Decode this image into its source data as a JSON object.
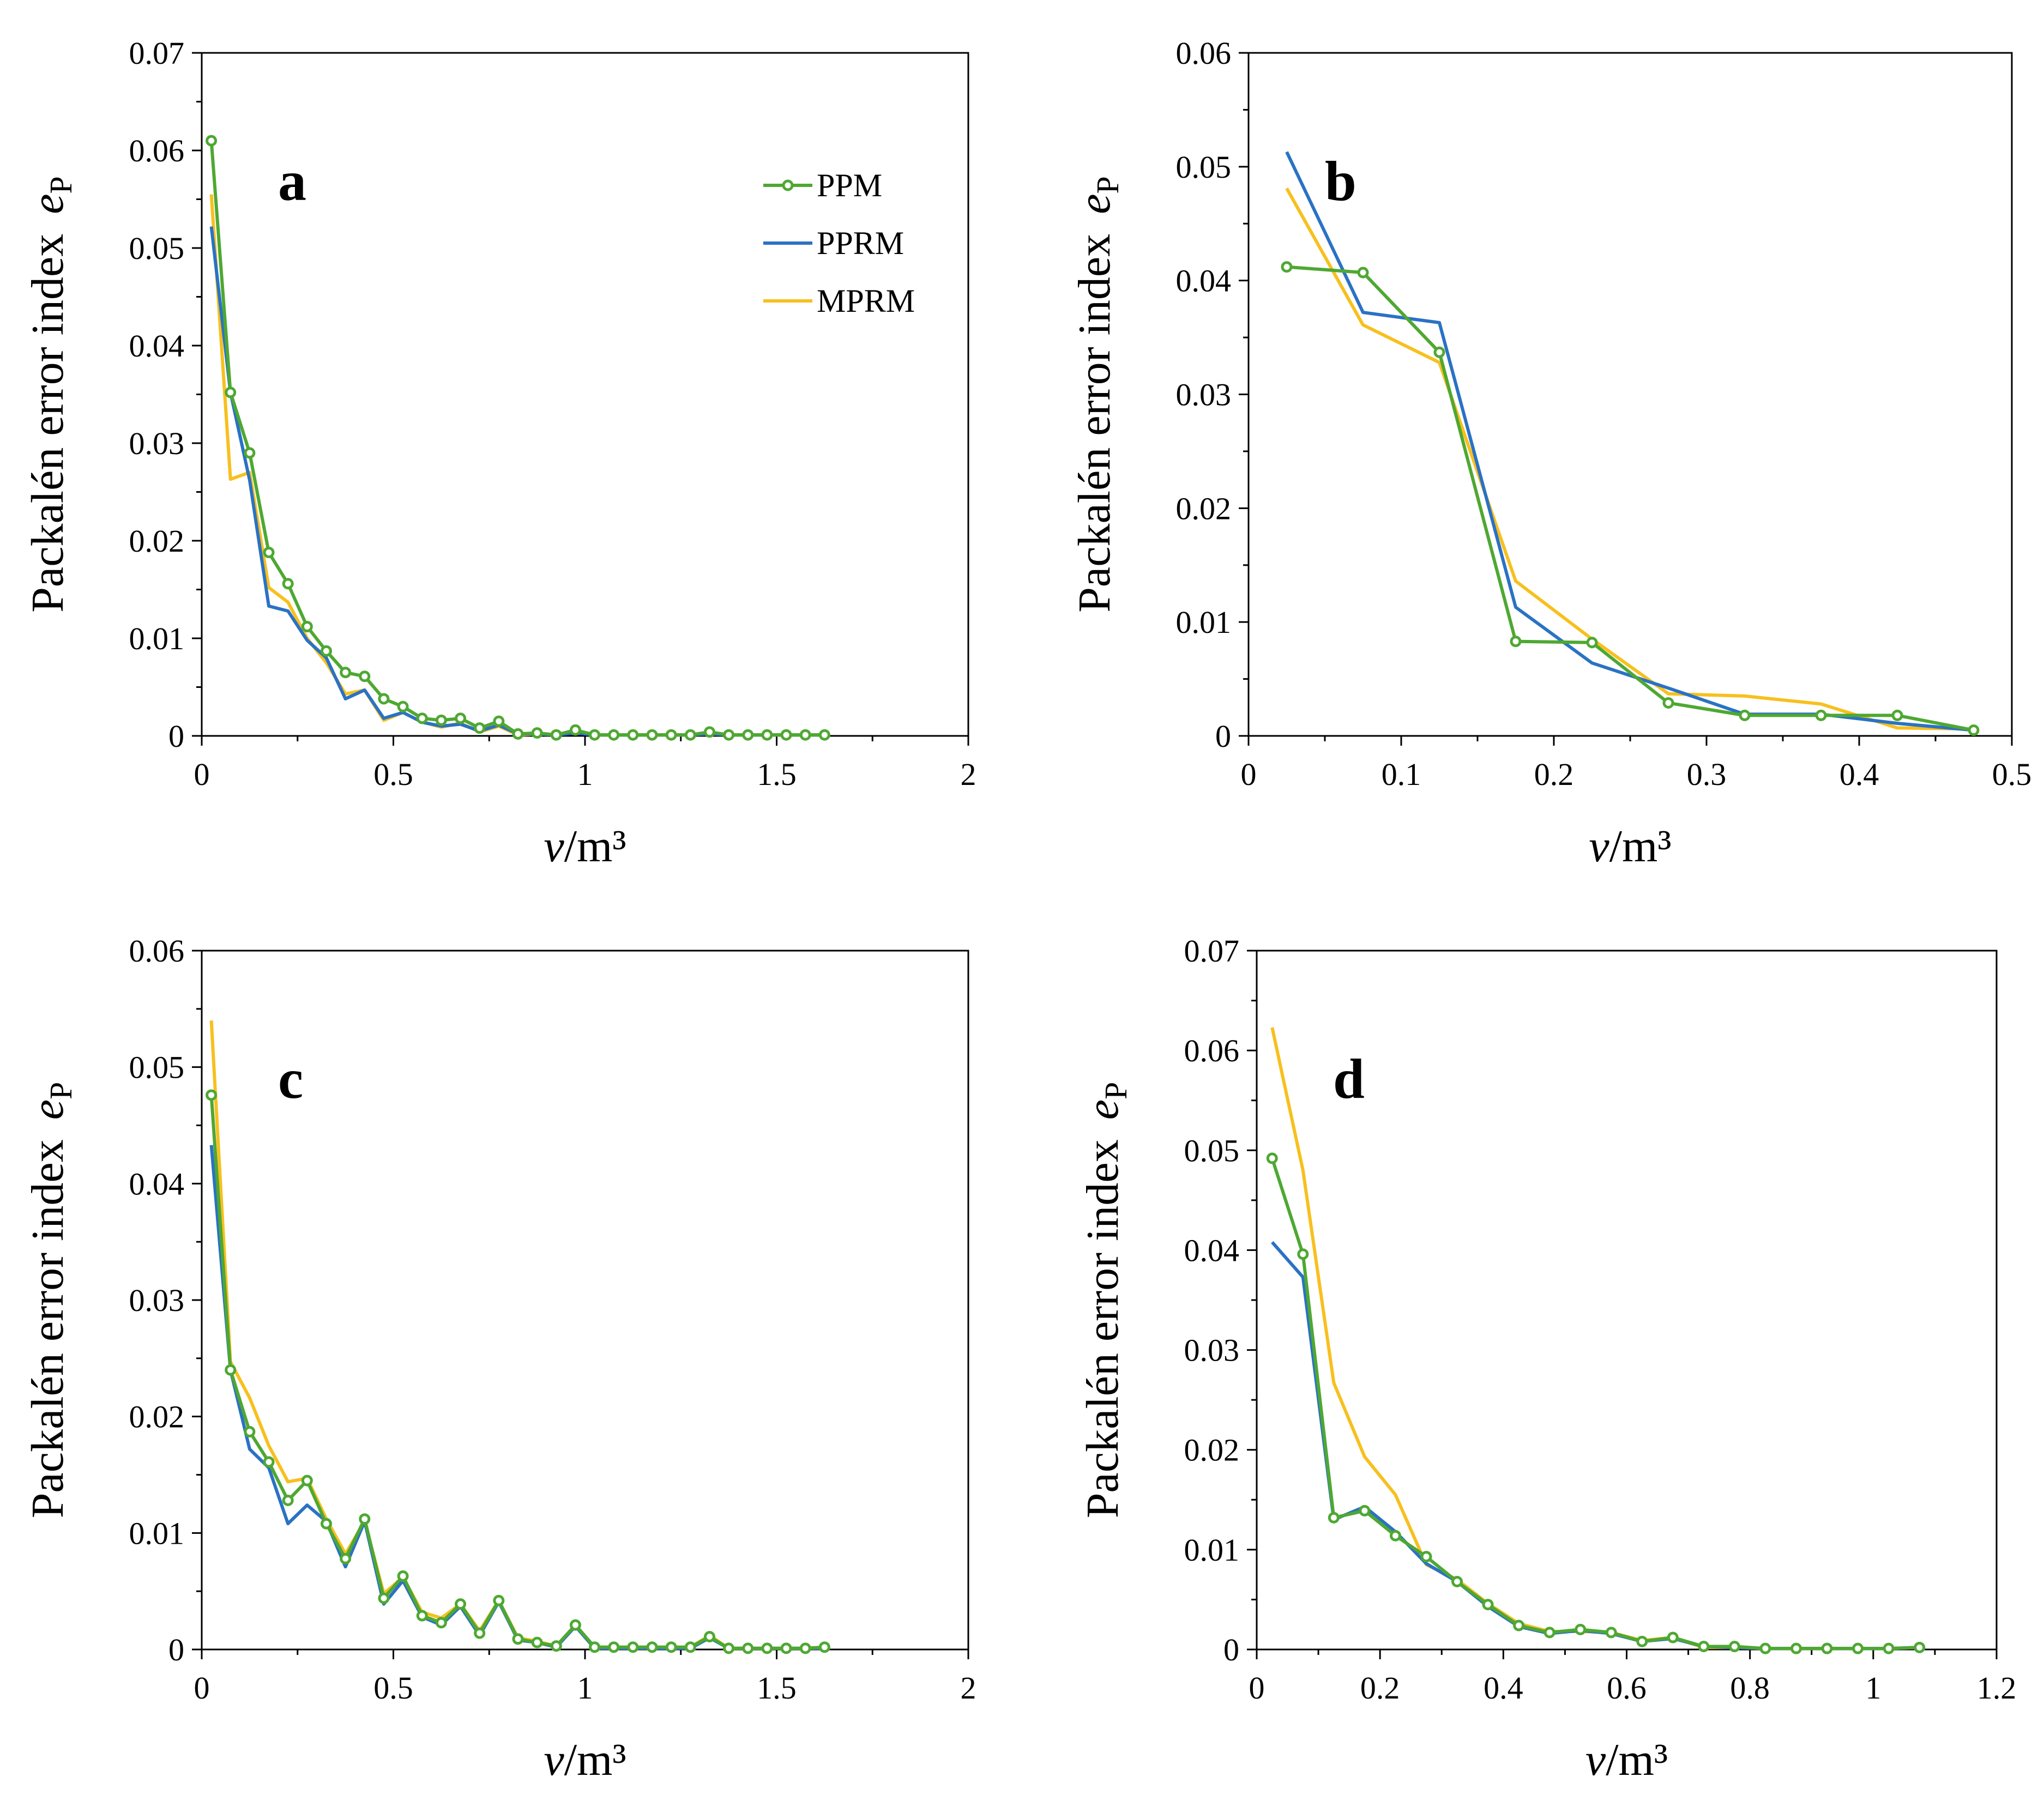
{
  "colors": {
    "PPM": "#4ea832",
    "PPRM": "#2a72c4",
    "MPRM": "#f7c01e"
  },
  "chart_data": [
    {
      "type": "line",
      "panel": "a",
      "xlabel_var": "v",
      "xlabel_unit": "/m³",
      "ylabel_text": "Packalén error index",
      "ylabel_sym": "e",
      "ylabel_sub": "P",
      "xlim": [
        0,
        2
      ],
      "ylim": [
        0,
        0.07
      ],
      "xticks": [
        "0",
        "0.5",
        "1",
        "1.5",
        "2"
      ],
      "xtick_values": [
        0,
        0.5,
        1,
        1.5,
        2
      ],
      "yticks": [
        "0",
        "0.01",
        "0.02",
        "0.03",
        "0.04",
        "0.05",
        "0.06",
        "0.07"
      ],
      "ytick_values": [
        0,
        0.01,
        0.02,
        0.03,
        0.04,
        0.05,
        0.06,
        0.07
      ],
      "legend": [
        "PPM",
        "PPRM",
        "MPRM"
      ],
      "legend_position": "top-right",
      "series": [
        {
          "name": "PPM",
          "markers": true,
          "x": [
            0.025,
            0.075,
            0.125,
            0.175,
            0.225,
            0.275,
            0.325,
            0.375,
            0.425,
            0.475,
            0.525,
            0.575,
            0.625,
            0.675,
            0.725,
            0.775,
            0.825,
            0.875,
            0.925,
            0.975,
            1.025,
            1.075,
            1.125,
            1.175,
            1.225,
            1.275,
            1.325,
            1.375,
            1.425,
            1.475,
            1.525,
            1.575,
            1.625
          ],
          "y": [
            0.061,
            0.0352,
            0.029,
            0.0188,
            0.0156,
            0.0112,
            0.0087,
            0.0065,
            0.0061,
            0.0038,
            0.003,
            0.0018,
            0.0016,
            0.0018,
            0.0008,
            0.0015,
            0.0002,
            0.0003,
            0.0001,
            0.0006,
            0.0001,
            0.0001,
            0.0001,
            0.0001,
            0.0001,
            0.0001,
            0.0004,
            0.0001,
            0.0001,
            0.0001,
            0.0001,
            0.0001,
            0.0001
          ]
        },
        {
          "name": "PPRM",
          "markers": false,
          "x": [
            0.025,
            0.075,
            0.125,
            0.175,
            0.225,
            0.275,
            0.325,
            0.375,
            0.425,
            0.475,
            0.525,
            0.575,
            0.625,
            0.675,
            0.725,
            0.775,
            0.825,
            0.875,
            0.925,
            0.975,
            1.025,
            1.075,
            1.125,
            1.175,
            1.225,
            1.275,
            1.325,
            1.375,
            1.425,
            1.475,
            1.525,
            1.575,
            1.625
          ],
          "y": [
            0.0522,
            0.0352,
            0.0262,
            0.0133,
            0.0128,
            0.0098,
            0.008,
            0.0038,
            0.0047,
            0.0018,
            0.0024,
            0.0014,
            0.001,
            0.0012,
            0.0005,
            0.0011,
            0.0002,
            0.0002,
            0.0001,
            0.0003,
            0.0001,
            0.0001,
            0.0001,
            0.0001,
            0.0001,
            0.0001,
            0.0002,
            0.0001,
            0.0001,
            0.0001,
            0.0001,
            0.0001,
            0.0001
          ]
        },
        {
          "name": "MPRM",
          "markers": false,
          "x": [
            0.025,
            0.075,
            0.125,
            0.175,
            0.225,
            0.275,
            0.325,
            0.375,
            0.425,
            0.475,
            0.525,
            0.575,
            0.625,
            0.675,
            0.725,
            0.775,
            0.825,
            0.875,
            0.925,
            0.975,
            1.025,
            1.075,
            1.125,
            1.175,
            1.225,
            1.275,
            1.325,
            1.375,
            1.425,
            1.475,
            1.525,
            1.575,
            1.625
          ],
          "y": [
            0.0555,
            0.0263,
            0.027,
            0.0152,
            0.0137,
            0.01,
            0.0075,
            0.0043,
            0.0047,
            0.0016,
            0.0024,
            0.0014,
            0.0009,
            0.0013,
            0.0004,
            0.001,
            0.0001,
            0.0002,
            0.0001,
            0.0004,
            0.0001,
            0.0001,
            0.0001,
            0.0001,
            0.0001,
            0.0001,
            0.0003,
            0.0001,
            0.0001,
            0.0001,
            0.0001,
            0.0001,
            0.0001
          ]
        }
      ]
    },
    {
      "type": "line",
      "panel": "b",
      "xlabel_var": "v",
      "xlabel_unit": "/m³",
      "ylabel_text": "Packalén error index",
      "ylabel_sym": "e",
      "ylabel_sub": "P",
      "xlim": [
        0,
        0.5
      ],
      "ylim": [
        0,
        0.06
      ],
      "xticks": [
        "0",
        "0.1",
        "0.2",
        "0.3",
        "0.4",
        "0.5"
      ],
      "xtick_values": [
        0,
        0.1,
        0.2,
        0.3,
        0.4,
        0.5
      ],
      "yticks": [
        "0",
        "0.01",
        "0.02",
        "0.03",
        "0.04",
        "0.05",
        "0.06"
      ],
      "ytick_values": [
        0,
        0.01,
        0.02,
        0.03,
        0.04,
        0.05,
        0.06
      ],
      "legend": [],
      "series": [
        {
          "name": "PPM",
          "markers": true,
          "x": [
            0.025,
            0.075,
            0.125,
            0.175,
            0.225,
            0.275,
            0.325,
            0.375,
            0.425,
            0.475
          ],
          "y": [
            0.0412,
            0.0407,
            0.0337,
            0.0083,
            0.0082,
            0.0029,
            0.0018,
            0.0018,
            0.0018,
            0.0005
          ]
        },
        {
          "name": "PPRM",
          "markers": false,
          "x": [
            0.025,
            0.075,
            0.125,
            0.175,
            0.225,
            0.275,
            0.325,
            0.375,
            0.425,
            0.475
          ],
          "y": [
            0.0513,
            0.0372,
            0.0363,
            0.0113,
            0.0064,
            0.0042,
            0.0019,
            0.0019,
            0.0011,
            0.0005
          ]
        },
        {
          "name": "MPRM",
          "markers": false,
          "x": [
            0.025,
            0.075,
            0.125,
            0.175,
            0.225,
            0.275,
            0.325,
            0.375,
            0.425,
            0.475
          ],
          "y": [
            0.0481,
            0.0361,
            0.0328,
            0.0136,
            0.0085,
            0.0037,
            0.0035,
            0.0028,
            0.0007,
            0.0006
          ]
        }
      ]
    },
    {
      "type": "line",
      "panel": "c",
      "xlabel_var": "v",
      "xlabel_unit": "/m³",
      "ylabel_text": "Packalén error index",
      "ylabel_sym": "e",
      "ylabel_sub": "P",
      "xlim": [
        0,
        2
      ],
      "ylim": [
        0,
        0.06
      ],
      "xticks": [
        "0",
        "0.5",
        "1",
        "1.5",
        "2"
      ],
      "xtick_values": [
        0,
        0.5,
        1,
        1.5,
        2
      ],
      "yticks": [
        "0",
        "0.01",
        "0.02",
        "0.03",
        "0.04",
        "0.05",
        "0.06"
      ],
      "ytick_values": [
        0,
        0.01,
        0.02,
        0.03,
        0.04,
        0.05,
        0.06
      ],
      "legend": [],
      "series": [
        {
          "name": "PPM",
          "markers": true,
          "x": [
            0.025,
            0.075,
            0.125,
            0.175,
            0.225,
            0.275,
            0.325,
            0.375,
            0.425,
            0.475,
            0.525,
            0.575,
            0.625,
            0.675,
            0.725,
            0.775,
            0.825,
            0.875,
            0.925,
            0.975,
            1.025,
            1.075,
            1.125,
            1.175,
            1.225,
            1.275,
            1.325,
            1.375,
            1.425,
            1.475,
            1.525,
            1.575,
            1.625
          ],
          "y": [
            0.0476,
            0.024,
            0.0187,
            0.0161,
            0.0128,
            0.0145,
            0.0108,
            0.0078,
            0.0112,
            0.0044,
            0.0063,
            0.0029,
            0.0023,
            0.0039,
            0.0014,
            0.0042,
            0.0009,
            0.0006,
            0.0003,
            0.0021,
            0.0002,
            0.0002,
            0.0002,
            0.0002,
            0.0002,
            0.0002,
            0.0011,
            0.0001,
            0.0001,
            0.0001,
            0.0001,
            0.0001,
            0.0002
          ]
        },
        {
          "name": "PPRM",
          "markers": false,
          "x": [
            0.025,
            0.075,
            0.125,
            0.175,
            0.225,
            0.275,
            0.325,
            0.375,
            0.425,
            0.475,
            0.525,
            0.575,
            0.625,
            0.675,
            0.725,
            0.775,
            0.825,
            0.875,
            0.925,
            0.975,
            1.025,
            1.075,
            1.125,
            1.175,
            1.225,
            1.275,
            1.325,
            1.375,
            1.425,
            1.475,
            1.525,
            1.575,
            1.625
          ],
          "y": [
            0.0433,
            0.024,
            0.0172,
            0.0156,
            0.0108,
            0.0124,
            0.011,
            0.0071,
            0.011,
            0.0039,
            0.0059,
            0.0028,
            0.0021,
            0.0037,
            0.0012,
            0.0041,
            0.0008,
            0.0006,
            0.0002,
            0.002,
            0.0001,
            0.0001,
            0.0001,
            0.0001,
            0.0001,
            0.0001,
            0.001,
            0.0001,
            0.0001,
            0.0001,
            0.0001,
            0.0001,
            0.0001
          ]
        },
        {
          "name": "MPRM",
          "markers": false,
          "x": [
            0.025,
            0.075,
            0.125,
            0.175,
            0.225,
            0.275,
            0.325,
            0.375,
            0.425,
            0.475,
            0.525,
            0.575,
            0.625,
            0.675,
            0.725,
            0.775,
            0.825,
            0.875,
            0.925,
            0.975,
            1.025,
            1.075,
            1.125,
            1.175,
            1.225,
            1.275,
            1.325,
            1.375,
            1.425,
            1.475,
            1.525,
            1.575,
            1.625
          ],
          "y": [
            0.054,
            0.0247,
            0.0216,
            0.0175,
            0.0144,
            0.0147,
            0.0112,
            0.0082,
            0.011,
            0.0048,
            0.0062,
            0.0032,
            0.0027,
            0.0039,
            0.0016,
            0.0042,
            0.001,
            0.0007,
            0.0003,
            0.0021,
            0.0002,
            0.0002,
            0.0002,
            0.0002,
            0.0002,
            0.0002,
            0.0012,
            0.0001,
            0.0001,
            0.0001,
            0.0001,
            0.0001,
            0.0002
          ]
        }
      ]
    },
    {
      "type": "line",
      "panel": "d",
      "xlabel_var": "v",
      "xlabel_unit": "/m³",
      "ylabel_text": "Packalén error index",
      "ylabel_sym": "e",
      "ylabel_sub": "P",
      "xlim": [
        0,
        1.2
      ],
      "ylim": [
        0,
        0.07
      ],
      "xticks": [
        "0",
        "0.2",
        "0.4",
        "0.6",
        "0.8",
        "1",
        "1.2"
      ],
      "xtick_values": [
        0,
        0.2,
        0.4,
        0.6,
        0.8,
        1.0,
        1.2
      ],
      "yticks": [
        "0",
        "0.01",
        "0.02",
        "0.03",
        "0.04",
        "0.05",
        "0.06",
        "0.07"
      ],
      "ytick_values": [
        0,
        0.01,
        0.02,
        0.03,
        0.04,
        0.05,
        0.06,
        0.07
      ],
      "legend": [],
      "series": [
        {
          "name": "PPM",
          "markers": true,
          "x": [
            0.025,
            0.075,
            0.125,
            0.175,
            0.225,
            0.275,
            0.325,
            0.375,
            0.425,
            0.475,
            0.525,
            0.575,
            0.625,
            0.675,
            0.725,
            0.775,
            0.825,
            0.875,
            0.925,
            0.975,
            1.025,
            1.075
          ],
          "y": [
            0.0492,
            0.0396,
            0.0132,
            0.0139,
            0.0114,
            0.0093,
            0.0068,
            0.0045,
            0.0024,
            0.0017,
            0.002,
            0.0017,
            0.0008,
            0.0012,
            0.0003,
            0.0003,
            0.0001,
            0.0001,
            0.0001,
            0.0001,
            0.0001,
            0.0002
          ]
        },
        {
          "name": "PPRM",
          "markers": false,
          "x": [
            0.025,
            0.075,
            0.125,
            0.175,
            0.225,
            0.275,
            0.325,
            0.375,
            0.425,
            0.475,
            0.525,
            0.575,
            0.625,
            0.675,
            0.725,
            0.775,
            0.825,
            0.875,
            0.925,
            0.975,
            1.025,
            1.075
          ],
          "y": [
            0.0408,
            0.0373,
            0.013,
            0.0143,
            0.0118,
            0.0086,
            0.0068,
            0.0043,
            0.0023,
            0.0016,
            0.0019,
            0.0016,
            0.0008,
            0.0011,
            0.0003,
            0.0002,
            0.0001,
            0.0001,
            0.0001,
            0.0001,
            0.0001,
            0.0002
          ]
        },
        {
          "name": "MPRM",
          "markers": false,
          "x": [
            0.025,
            0.075,
            0.125,
            0.175,
            0.225,
            0.275,
            0.325,
            0.375,
            0.425,
            0.475,
            0.525,
            0.575,
            0.625,
            0.675,
            0.725,
            0.775,
            0.825,
            0.875,
            0.925,
            0.975,
            1.025,
            1.075
          ],
          "y": [
            0.0623,
            0.048,
            0.0267,
            0.0193,
            0.0155,
            0.0085,
            0.007,
            0.0046,
            0.0026,
            0.0018,
            0.0018,
            0.0017,
            0.0009,
            0.0012,
            0.0002,
            0.0002,
            0.0001,
            0.0001,
            0.0001,
            0.0001,
            0.0001,
            0.0002
          ]
        }
      ]
    }
  ]
}
